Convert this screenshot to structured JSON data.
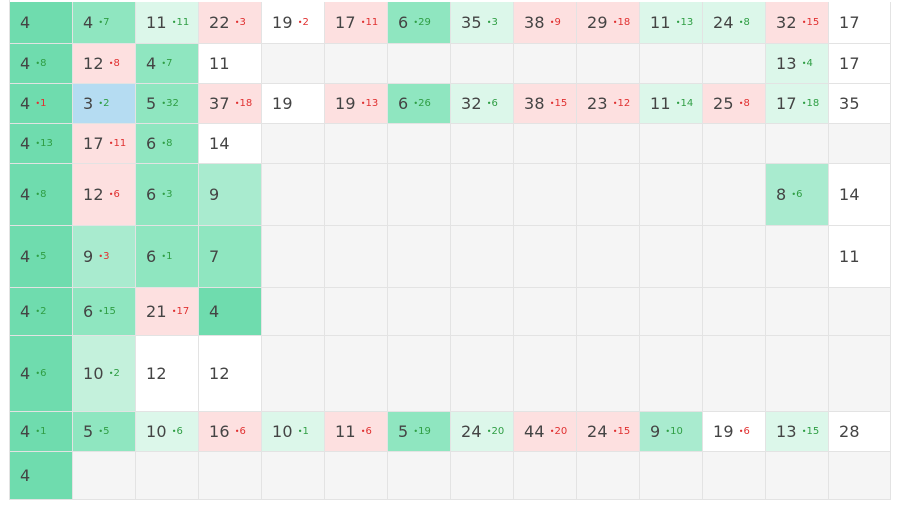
{
  "grid": {
    "rows": [
      {
        "cells": [
          {
            "v": "4",
            "bg": "g5"
          },
          {
            "v": "4",
            "d": "7",
            "dir": "up",
            "bg": "g4"
          },
          {
            "v": "11",
            "d": "11",
            "dir": "up",
            "bg": "g1"
          },
          {
            "v": "22",
            "d": "3",
            "dir": "down",
            "bg": "r1"
          },
          {
            "v": "19",
            "d": "2",
            "dir": "down",
            "bg": "white"
          },
          {
            "v": "17",
            "d": "11",
            "dir": "down",
            "bg": "r1"
          },
          {
            "v": "6",
            "d": "29",
            "dir": "up",
            "bg": "g4"
          },
          {
            "v": "35",
            "d": "3",
            "dir": "up",
            "bg": "g1"
          },
          {
            "v": "38",
            "d": "9",
            "dir": "down",
            "bg": "r1"
          },
          {
            "v": "29",
            "d": "18",
            "dir": "down",
            "bg": "r1"
          },
          {
            "v": "11",
            "d": "13",
            "dir": "up",
            "bg": "g1"
          },
          {
            "v": "24",
            "d": "8",
            "dir": "up",
            "bg": "g1"
          },
          {
            "v": "32",
            "d": "15",
            "dir": "down",
            "bg": "r1"
          },
          {
            "v": "17",
            "bg": "white"
          }
        ]
      },
      {
        "cells": [
          {
            "v": "4",
            "d": "8",
            "dir": "up",
            "bg": "g5"
          },
          {
            "v": "12",
            "d": "8",
            "dir": "down",
            "bg": "r1"
          },
          {
            "v": "4",
            "d": "7",
            "dir": "up",
            "bg": "g4"
          },
          {
            "v": "11",
            "bg": "white"
          },
          {
            "v": "",
            "bg": "empty"
          },
          {
            "v": "",
            "bg": "empty"
          },
          {
            "v": "",
            "bg": "empty"
          },
          {
            "v": "",
            "bg": "empty"
          },
          {
            "v": "",
            "bg": "empty"
          },
          {
            "v": "",
            "bg": "empty"
          },
          {
            "v": "",
            "bg": "empty"
          },
          {
            "v": "",
            "bg": "empty"
          },
          {
            "v": "13",
            "d": "4",
            "dir": "up",
            "bg": "g1"
          },
          {
            "v": "17",
            "bg": "white"
          }
        ]
      },
      {
        "cells": [
          {
            "v": "4",
            "d": "1",
            "dir": "down",
            "bg": "g5"
          },
          {
            "v": "3",
            "d": "2",
            "dir": "up",
            "bg": "blue"
          },
          {
            "v": "5",
            "d": "32",
            "dir": "up",
            "bg": "g4"
          },
          {
            "v": "37",
            "d": "18",
            "dir": "down",
            "bg": "r1"
          },
          {
            "v": "19",
            "bg": "white"
          },
          {
            "v": "19",
            "d": "13",
            "dir": "down",
            "bg": "r1"
          },
          {
            "v": "6",
            "d": "26",
            "dir": "up",
            "bg": "g4"
          },
          {
            "v": "32",
            "d": "6",
            "dir": "up",
            "bg": "g1"
          },
          {
            "v": "38",
            "d": "15",
            "dir": "down",
            "bg": "r1"
          },
          {
            "v": "23",
            "d": "12",
            "dir": "down",
            "bg": "r1"
          },
          {
            "v": "11",
            "d": "14",
            "dir": "up",
            "bg": "g1"
          },
          {
            "v": "25",
            "d": "8",
            "dir": "down",
            "bg": "r1"
          },
          {
            "v": "17",
            "d": "18",
            "dir": "up",
            "bg": "g1"
          },
          {
            "v": "35",
            "bg": "white"
          }
        ]
      },
      {
        "cells": [
          {
            "v": "4",
            "d": "13",
            "dir": "up",
            "bg": "g5"
          },
          {
            "v": "17",
            "d": "11",
            "dir": "down",
            "bg": "r1"
          },
          {
            "v": "6",
            "d": "8",
            "dir": "up",
            "bg": "g4"
          },
          {
            "v": "14",
            "bg": "white"
          },
          {
            "v": "",
            "bg": "empty"
          },
          {
            "v": "",
            "bg": "empty"
          },
          {
            "v": "",
            "bg": "empty"
          },
          {
            "v": "",
            "bg": "empty"
          },
          {
            "v": "",
            "bg": "empty"
          },
          {
            "v": "",
            "bg": "empty"
          },
          {
            "v": "",
            "bg": "empty"
          },
          {
            "v": "",
            "bg": "empty"
          },
          {
            "v": "",
            "bg": "empty"
          },
          {
            "v": "",
            "bg": "empty"
          }
        ]
      },
      {
        "cells": [
          {
            "v": "4",
            "d": "8",
            "dir": "up",
            "bg": "g5"
          },
          {
            "v": "12",
            "d": "6",
            "dir": "down",
            "bg": "r1"
          },
          {
            "v": "6",
            "d": "3",
            "dir": "up",
            "bg": "g4"
          },
          {
            "v": "9",
            "bg": "g3"
          },
          {
            "v": "",
            "bg": "empty"
          },
          {
            "v": "",
            "bg": "empty"
          },
          {
            "v": "",
            "bg": "empty"
          },
          {
            "v": "",
            "bg": "empty"
          },
          {
            "v": "",
            "bg": "empty"
          },
          {
            "v": "",
            "bg": "empty"
          },
          {
            "v": "",
            "bg": "empty"
          },
          {
            "v": "",
            "bg": "empty"
          },
          {
            "v": "8",
            "d": "6",
            "dir": "up",
            "bg": "g3"
          },
          {
            "v": "14",
            "bg": "white"
          }
        ]
      },
      {
        "cells": [
          {
            "v": "4",
            "d": "5",
            "dir": "up",
            "bg": "g5"
          },
          {
            "v": "9",
            "d": "3",
            "dir": "down",
            "bg": "g3"
          },
          {
            "v": "6",
            "d": "1",
            "dir": "up",
            "bg": "g4"
          },
          {
            "v": "7",
            "bg": "g4"
          },
          {
            "v": "",
            "bg": "empty"
          },
          {
            "v": "",
            "bg": "empty"
          },
          {
            "v": "",
            "bg": "empty"
          },
          {
            "v": "",
            "bg": "empty"
          },
          {
            "v": "",
            "bg": "empty"
          },
          {
            "v": "",
            "bg": "empty"
          },
          {
            "v": "",
            "bg": "empty"
          },
          {
            "v": "",
            "bg": "empty"
          },
          {
            "v": "",
            "bg": "empty"
          },
          {
            "v": "11",
            "bg": "white"
          }
        ]
      },
      {
        "cells": [
          {
            "v": "4",
            "d": "2",
            "dir": "up",
            "bg": "g5"
          },
          {
            "v": "6",
            "d": "15",
            "dir": "up",
            "bg": "g4"
          },
          {
            "v": "21",
            "d": "17",
            "dir": "down",
            "bg": "r1"
          },
          {
            "v": "4",
            "bg": "g5"
          },
          {
            "v": "",
            "bg": "empty"
          },
          {
            "v": "",
            "bg": "empty"
          },
          {
            "v": "",
            "bg": "empty"
          },
          {
            "v": "",
            "bg": "empty"
          },
          {
            "v": "",
            "bg": "empty"
          },
          {
            "v": "",
            "bg": "empty"
          },
          {
            "v": "",
            "bg": "empty"
          },
          {
            "v": "",
            "bg": "empty"
          },
          {
            "v": "",
            "bg": "empty"
          },
          {
            "v": "",
            "bg": "empty"
          }
        ]
      },
      {
        "cells": [
          {
            "v": "4",
            "d": "6",
            "dir": "up",
            "bg": "g5"
          },
          {
            "v": "10",
            "d": "2",
            "dir": "up",
            "bg": "g2"
          },
          {
            "v": "12",
            "bg": "white"
          },
          {
            "v": "12",
            "bg": "white"
          },
          {
            "v": "",
            "bg": "empty"
          },
          {
            "v": "",
            "bg": "empty"
          },
          {
            "v": "",
            "bg": "empty"
          },
          {
            "v": "",
            "bg": "empty"
          },
          {
            "v": "",
            "bg": "empty"
          },
          {
            "v": "",
            "bg": "empty"
          },
          {
            "v": "",
            "bg": "empty"
          },
          {
            "v": "",
            "bg": "empty"
          },
          {
            "v": "",
            "bg": "empty"
          },
          {
            "v": "",
            "bg": "empty"
          }
        ]
      },
      {
        "cells": [
          {
            "v": "4",
            "d": "1",
            "dir": "up",
            "bg": "g5"
          },
          {
            "v": "5",
            "d": "5",
            "dir": "up",
            "bg": "g4"
          },
          {
            "v": "10",
            "d": "6",
            "dir": "up",
            "bg": "g1"
          },
          {
            "v": "16",
            "d": "6",
            "dir": "down",
            "bg": "r1"
          },
          {
            "v": "10",
            "d": "1",
            "dir": "up",
            "bg": "g1"
          },
          {
            "v": "11",
            "d": "6",
            "dir": "down",
            "bg": "r1"
          },
          {
            "v": "5",
            "d": "19",
            "dir": "up",
            "bg": "g4"
          },
          {
            "v": "24",
            "d": "20",
            "dir": "up",
            "bg": "g1"
          },
          {
            "v": "44",
            "d": "20",
            "dir": "down",
            "bg": "r1"
          },
          {
            "v": "24",
            "d": "15",
            "dir": "down",
            "bg": "r1"
          },
          {
            "v": "9",
            "d": "10",
            "dir": "up",
            "bg": "g3"
          },
          {
            "v": "19",
            "d": "6",
            "dir": "down",
            "bg": "white"
          },
          {
            "v": "13",
            "d": "15",
            "dir": "up",
            "bg": "g1"
          },
          {
            "v": "28",
            "bg": "white"
          }
        ]
      },
      {
        "cells": [
          {
            "v": "4",
            "bg": "g5"
          },
          {
            "v": "",
            "bg": "empty"
          },
          {
            "v": "",
            "bg": "empty"
          },
          {
            "v": "",
            "bg": "empty"
          },
          {
            "v": "",
            "bg": "empty"
          },
          {
            "v": "",
            "bg": "empty"
          },
          {
            "v": "",
            "bg": "empty"
          },
          {
            "v": "",
            "bg": "empty"
          },
          {
            "v": "",
            "bg": "empty"
          },
          {
            "v": "",
            "bg": "empty"
          },
          {
            "v": "",
            "bg": "empty"
          },
          {
            "v": "",
            "bg": "empty"
          },
          {
            "v": "",
            "bg": "empty"
          },
          {
            "v": "",
            "bg": "empty"
          }
        ]
      }
    ]
  }
}
